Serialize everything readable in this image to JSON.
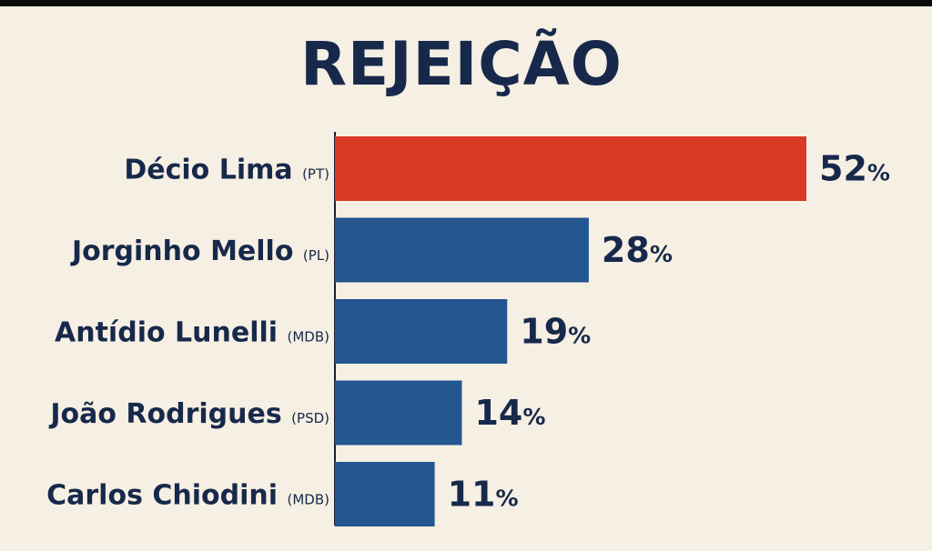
{
  "chart_data": {
    "type": "bar",
    "orientation": "horizontal",
    "title": "REJEIÇÃO",
    "categories": [
      "Décio Lima",
      "Jorginho Mello",
      "Antídio Lunelli",
      "João Rodrigues",
      "Carlos Chiodini"
    ],
    "parties": [
      "(PT)",
      "(PL)",
      "(MDB)",
      "(PSD)",
      "(MDB)"
    ],
    "values": [
      52,
      28,
      19,
      14,
      11
    ],
    "value_suffix": "%",
    "colors": [
      "#d93a26",
      "#245690",
      "#245690",
      "#245690",
      "#245690"
    ],
    "xlim": [
      0,
      52
    ],
    "grid": false,
    "legend": "none"
  }
}
